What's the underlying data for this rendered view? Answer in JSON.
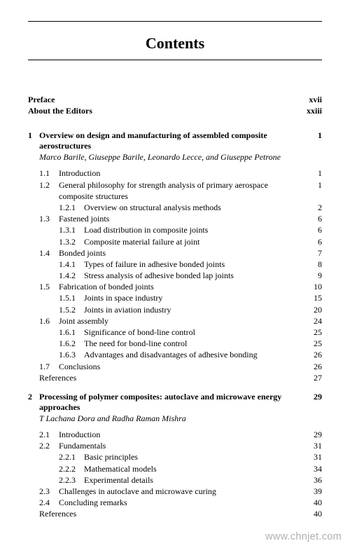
{
  "heading": "Contents",
  "front": [
    {
      "label": "Preface",
      "page": "xvii"
    },
    {
      "label": "About the Editors",
      "page": "xxiii"
    }
  ],
  "chapters": [
    {
      "num": "1",
      "title": "Overview on design and manufacturing of assembled composite aerostructures",
      "page": "1",
      "authors": "Marco Barile, Giuseppe Barile, Leonardo Lecce, and Giuseppe Petrone",
      "sections": [
        {
          "num": "1.1",
          "title": "Introduction",
          "page": "1"
        },
        {
          "num": "1.2",
          "title": "General philosophy for strength analysis of primary aerospace composite structures",
          "page": "1",
          "subs": [
            {
              "num": "1.2.1",
              "title": "Overview on structural analysis methods",
              "page": "2"
            }
          ]
        },
        {
          "num": "1.3",
          "title": "Fastened joints",
          "page": "6",
          "subs": [
            {
              "num": "1.3.1",
              "title": "Load distribution in composite joints",
              "page": "6"
            },
            {
              "num": "1.3.2",
              "title": "Composite material failure at joint",
              "page": "6"
            }
          ]
        },
        {
          "num": "1.4",
          "title": "Bonded joints",
          "page": "7",
          "subs": [
            {
              "num": "1.4.1",
              "title": "Types of failure in adhesive bonded joints",
              "page": "8"
            },
            {
              "num": "1.4.2",
              "title": "Stress analysis of adhesive bonded lap joints",
              "page": "9"
            }
          ]
        },
        {
          "num": "1.5",
          "title": "Fabrication of bonded joints",
          "page": "10",
          "subs": [
            {
              "num": "1.5.1",
              "title": "Joints in space industry",
              "page": "15"
            },
            {
              "num": "1.5.2",
              "title": "Joints in aviation industry",
              "page": "20"
            }
          ]
        },
        {
          "num": "1.6",
          "title": "Joint assembly",
          "page": "24",
          "subs": [
            {
              "num": "1.6.1",
              "title": "Significance of bond-line control",
              "page": "25"
            },
            {
              "num": "1.6.2",
              "title": "The need for bond-line control",
              "page": "25"
            },
            {
              "num": "1.6.3",
              "title": "Advantages and disadvantages of adhesive bonding",
              "page": "26"
            }
          ]
        },
        {
          "num": "1.7",
          "title": "Conclusions",
          "page": "26"
        }
      ],
      "references_page": "27"
    },
    {
      "num": "2",
      "title": "Processing of polymer composites: autoclave and microwave energy approaches",
      "page": "29",
      "authors": "T Lachana Dora and Radha Raman Mishra",
      "sections": [
        {
          "num": "2.1",
          "title": "Introduction",
          "page": "29"
        },
        {
          "num": "2.2",
          "title": "Fundamentals",
          "page": "31",
          "subs": [
            {
              "num": "2.2.1",
              "title": "Basic principles",
              "page": "31"
            },
            {
              "num": "2.2.2",
              "title": "Mathematical models",
              "page": "34"
            },
            {
              "num": "2.2.3",
              "title": "Experimental details",
              "page": "36"
            }
          ]
        },
        {
          "num": "2.3",
          "title": "Challenges in autoclave and microwave curing",
          "page": "39"
        },
        {
          "num": "2.4",
          "title": "Concluding remarks",
          "page": "40"
        }
      ],
      "references_page": "40"
    }
  ],
  "references_label": "References",
  "watermark": "www.chnjet.com"
}
